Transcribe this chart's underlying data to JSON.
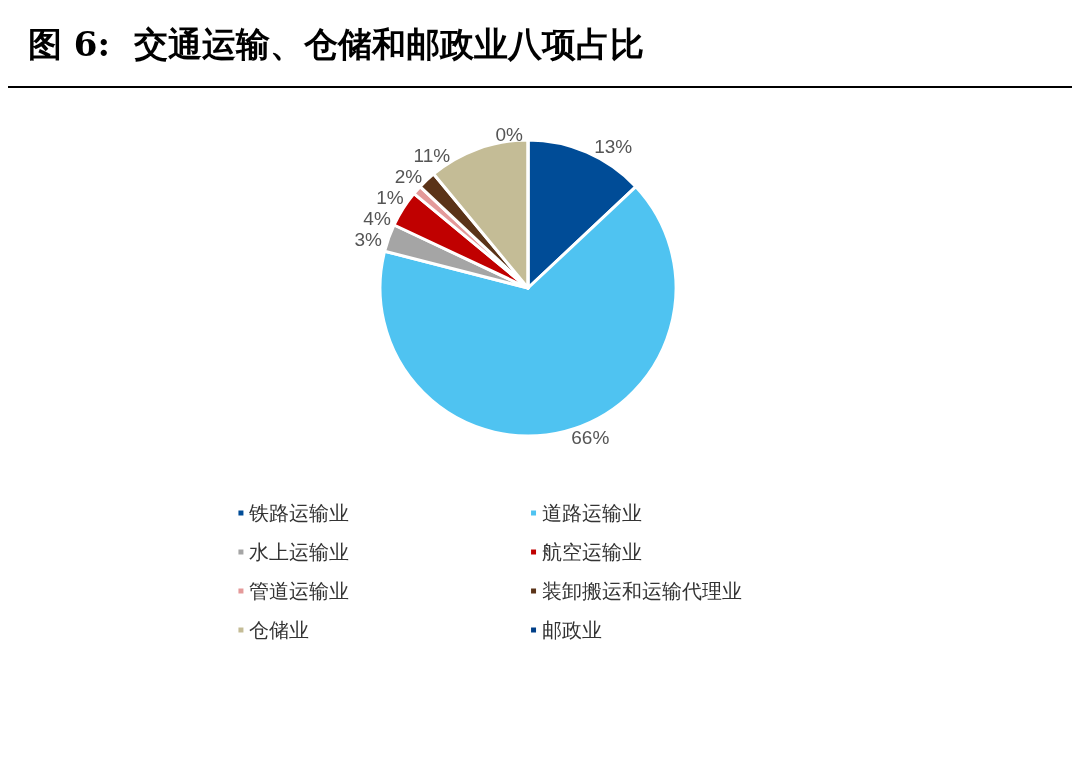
{
  "chart_data": {
    "type": "pie",
    "title": "图 6:  交通运输、仓储和邮政业八项占比",
    "categories": [
      "铁路运输业",
      "道路运输业",
      "水上运输业",
      "航空运输业",
      "管道运输业",
      "装卸搬运和运输代理业",
      "仓储业",
      "邮政业"
    ],
    "values": [
      13,
      66,
      3,
      4,
      1,
      2,
      11,
      0
    ],
    "colors": [
      "#004c97",
      "#4fc3f1",
      "#a5a5a5",
      "#c00000",
      "#e49a9a",
      "#5b3318",
      "#c4bc96",
      "#003f88"
    ],
    "value_labels": [
      "13%",
      "66%",
      "3%",
      "4%",
      "1%",
      "2%",
      "11%",
      "0%"
    ],
    "legend": "bottom"
  }
}
